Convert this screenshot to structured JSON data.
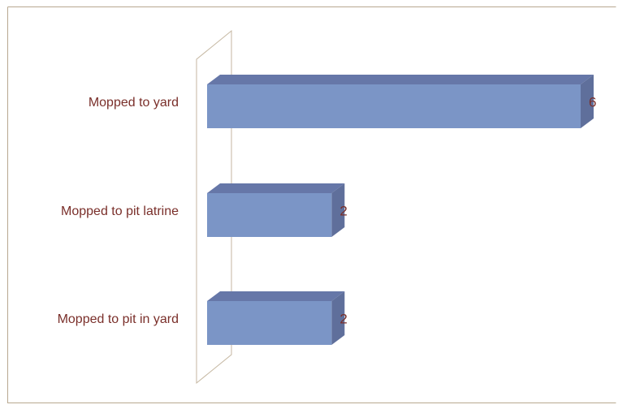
{
  "chart_data": {
    "type": "bar",
    "orientation": "horizontal",
    "style": "3d",
    "categories": [
      "Mopped to yard",
      "Mopped to pit latrine",
      "Mopped to pit in yard"
    ],
    "values": [
      6,
      2,
      2
    ],
    "data_labels": [
      "6",
      "2",
      "2"
    ],
    "xlim": [
      0,
      6
    ],
    "grid": false,
    "legend": "none",
    "title": "",
    "xlabel": "",
    "ylabel": ""
  },
  "colors": {
    "bar_front": "#7b95c6",
    "bar_top": "#6677a8",
    "bar_side": "#5f6f9b",
    "label_text": "#7a2f2a",
    "wall_stroke": "#c4b6a0",
    "border": "#b8a890"
  }
}
